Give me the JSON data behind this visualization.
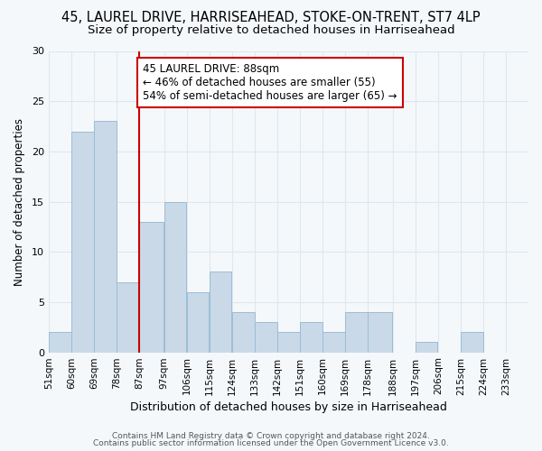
{
  "title1": "45, LAUREL DRIVE, HARRISEAHEAD, STOKE-ON-TRENT, ST7 4LP",
  "title2": "Size of property relative to detached houses in Harriseahead",
  "xlabel": "Distribution of detached houses by size in Harriseahead",
  "ylabel": "Number of detached properties",
  "bins_left": [
    51,
    60,
    69,
    78,
    87,
    97,
    106,
    115,
    124,
    133,
    142,
    151,
    160,
    169,
    178,
    188,
    197,
    206,
    215,
    224,
    233
  ],
  "values": [
    2,
    22,
    23,
    7,
    13,
    15,
    6,
    8,
    4,
    3,
    2,
    3,
    2,
    4,
    4,
    0,
    1,
    0,
    2,
    0,
    0
  ],
  "bar_color": "#c9d9e8",
  "bar_edge_color": "#9dbdd4",
  "vline_x": 87,
  "vline_color": "#cc0000",
  "annotation_text": "45 LAUREL DRIVE: 88sqm\n← 46% of detached houses are smaller (55)\n54% of semi-detached houses are larger (65) →",
  "annotation_box_color": "#ffffff",
  "annotation_edge_color": "#cc0000",
  "ylim": [
    0,
    30
  ],
  "yticks": [
    0,
    5,
    10,
    15,
    20,
    25,
    30
  ],
  "xlim": [
    51,
    242
  ],
  "tick_labels": [
    "51sqm",
    "60sqm",
    "69sqm",
    "78sqm",
    "87sqm",
    "97sqm",
    "106sqm",
    "115sqm",
    "124sqm",
    "133sqm",
    "142sqm",
    "151sqm",
    "160sqm",
    "169sqm",
    "178sqm",
    "188sqm",
    "197sqm",
    "206sqm",
    "215sqm",
    "224sqm",
    "233sqm"
  ],
  "footer1": "Contains HM Land Registry data © Crown copyright and database right 2024.",
  "footer2": "Contains public sector information licensed under the Open Government Licence v3.0.",
  "bg_color": "#f5f8fb",
  "grid_color": "#dde8f0",
  "title1_fontsize": 10.5,
  "title2_fontsize": 9.5,
  "xlabel_fontsize": 9,
  "ylabel_fontsize": 8.5,
  "tick_fontsize": 7.5,
  "annotation_fontsize": 8.5,
  "footer_fontsize": 6.5,
  "footer_color": "#555555"
}
